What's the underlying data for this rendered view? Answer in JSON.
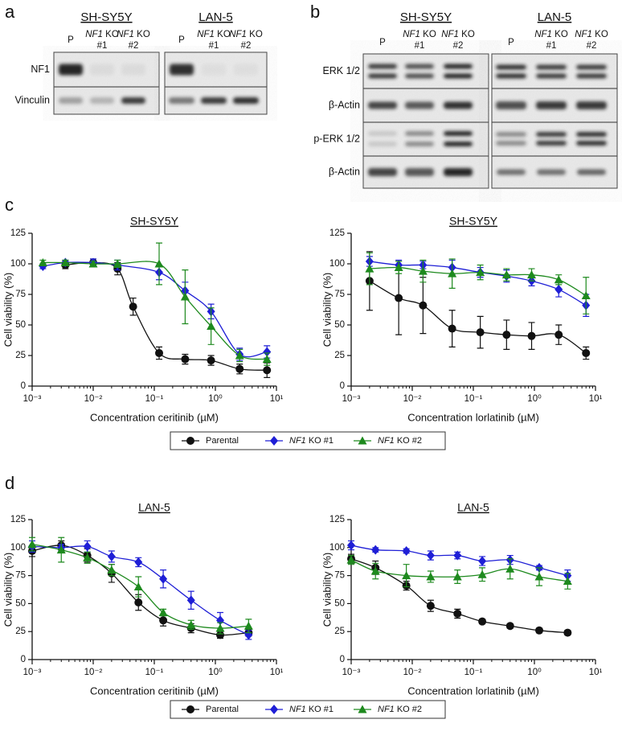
{
  "blots": {
    "a": {
      "letter": "a",
      "groups": [
        {
          "title": "SH-SY5Y",
          "lanes": [
            [
              "P"
            ],
            [
              "NF1 KO",
              "#1"
            ],
            [
              "NF1 KO",
              "#2"
            ]
          ]
        },
        {
          "title": "LAN-5",
          "lanes": [
            [
              "P"
            ],
            [
              "NF1 KO",
              "#1"
            ],
            [
              "NF1 KO",
              "#2"
            ]
          ]
        }
      ],
      "rows": [
        "NF1",
        "Vinculin"
      ]
    },
    "b": {
      "letter": "b",
      "groups": [
        {
          "title": "SH-SY5Y",
          "lanes": [
            [
              "P"
            ],
            [
              "NF1 KO",
              "#1"
            ],
            [
              "NF1 KO",
              "#2"
            ]
          ]
        },
        {
          "title": "LAN-5",
          "lanes": [
            [
              "P"
            ],
            [
              "NF1 KO",
              "#1"
            ],
            [
              "NF1 KO",
              "#2"
            ]
          ]
        }
      ],
      "rows": [
        "ERK 1/2",
        "β-Actin",
        "p-ERK 1/2",
        "β-Actin"
      ]
    }
  },
  "chart_data": [
    {
      "type": "line",
      "letter": "c",
      "series": [
        {
          "name": "Parental",
          "color": "#111111",
          "marker": "circle"
        },
        {
          "name": "NF1 KO #1",
          "color": "#1f1fd6",
          "marker": "diamond"
        },
        {
          "name": "NF1 KO #2",
          "color": "#1e8a1e",
          "marker": "triangle"
        }
      ],
      "plots": [
        {
          "title": "SH-SY5Y",
          "xlabel": "Concentration ceritinib (µM)",
          "ylabel": "Cell viability (%)",
          "xscale": "log",
          "xlim": [
            0.001,
            10
          ],
          "xticks": [
            {
              "value": 0.001,
              "label": "10⁻³"
            },
            {
              "value": 0.01,
              "label": "10⁻²"
            },
            {
              "value": 0.1,
              "label": "10⁻¹"
            },
            {
              "value": 1,
              "label": "10⁰"
            },
            {
              "value": 10,
              "label": "10¹"
            }
          ],
          "ylim": [
            0,
            125
          ],
          "yticks": [
            0,
            25,
            50,
            75,
            100,
            125
          ],
          "series": [
            {
              "x": [
                0.0035,
                0.01,
                0.025,
                0.045,
                0.12,
                0.32,
                0.85,
                2.5,
                7
              ],
              "values": [
                99,
                101,
                96,
                65,
                27,
                22,
                21,
                14,
                13
              ],
              "errors": [
                3,
                3,
                5,
                7,
                5,
                4,
                4,
                4,
                6
              ]
            },
            {
              "x": [
                0.0015,
                0.0035,
                0.01,
                0.025,
                0.12,
                0.32,
                0.85,
                2.5,
                7
              ],
              "values": [
                98,
                101,
                101,
                99,
                93,
                78,
                61,
                26,
                28
              ],
              "errors": [
                2,
                2,
                3,
                4,
                6,
                7,
                6,
                5,
                5
              ]
            },
            {
              "x": [
                0.0015,
                0.0035,
                0.01,
                0.025,
                0.12,
                0.32,
                0.85,
                2.5,
                7
              ],
              "values": [
                101,
                101,
                100,
                100,
                100,
                73,
                49,
                25,
                22
              ],
              "errors": [
                2,
                2,
                2,
                3,
                17,
                22,
                15,
                5,
                5
              ]
            }
          ]
        },
        {
          "title": "SH-SY5Y",
          "xlabel": "Concentration lorlatinib (µM)",
          "ylabel": "Cell viability (%)",
          "xscale": "log",
          "xlim": [
            0.001,
            10
          ],
          "xticks": [
            {
              "value": 0.001,
              "label": "10⁻³"
            },
            {
              "value": 0.01,
              "label": "10⁻²"
            },
            {
              "value": 0.1,
              "label": "10⁻¹"
            },
            {
              "value": 1,
              "label": "10⁰"
            },
            {
              "value": 10,
              "label": "10¹"
            }
          ],
          "ylim": [
            0,
            125
          ],
          "yticks": [
            0,
            25,
            50,
            75,
            100,
            125
          ],
          "series": [
            {
              "x": [
                0.002,
                0.006,
                0.015,
                0.045,
                0.13,
                0.35,
                0.9,
                2.5,
                7
              ],
              "values": [
                86,
                72,
                66,
                47,
                44,
                42,
                41,
                42,
                27
              ],
              "errors": [
                24,
                30,
                23,
                15,
                13,
                12,
                11,
                8,
                5
              ]
            },
            {
              "x": [
                0.002,
                0.006,
                0.015,
                0.045,
                0.13,
                0.35,
                0.9,
                2.5,
                7
              ],
              "values": [
                102,
                99,
                99,
                97,
                93,
                90,
                86,
                79,
                66
              ],
              "errors": [
                4,
                4,
                3,
                6,
                4,
                5,
                4,
                6,
                9
              ]
            },
            {
              "x": [
                0.002,
                0.006,
                0.015,
                0.045,
                0.13,
                0.35,
                0.9,
                2.5,
                7
              ],
              "values": [
                96,
                97,
                94,
                92,
                93,
                91,
                91,
                87,
                74
              ],
              "errors": [
                13,
                5,
                9,
                12,
                6,
                5,
                5,
                4,
                15
              ]
            }
          ]
        }
      ]
    },
    {
      "type": "line",
      "letter": "d",
      "series": [
        {
          "name": "Parental",
          "color": "#111111",
          "marker": "circle"
        },
        {
          "name": "NF1 KO #1",
          "color": "#1f1fd6",
          "marker": "diamond"
        },
        {
          "name": "NF1 KO #2",
          "color": "#1e8a1e",
          "marker": "triangle"
        }
      ],
      "plots": [
        {
          "title": "LAN-5",
          "xlabel": "Concentration ceritinib (µM)",
          "ylabel": "Cell viability (%)",
          "xscale": "log",
          "xlim": [
            0.001,
            10
          ],
          "xticks": [
            {
              "value": 0.001,
              "label": "10⁻³"
            },
            {
              "value": 0.01,
              "label": "10⁻²"
            },
            {
              "value": 0.1,
              "label": "10⁻¹"
            },
            {
              "value": 1,
              "label": "10⁰"
            },
            {
              "value": 10,
              "label": "10¹"
            }
          ],
          "ylim": [
            0,
            125
          ],
          "yticks": [
            0,
            25,
            50,
            75,
            100,
            125
          ],
          "series": [
            {
              "x": [
                0.001,
                0.003,
                0.008,
                0.02,
                0.055,
                0.14,
                0.4,
                1.2,
                3.5
              ],
              "values": [
                97,
                102,
                93,
                77,
                51,
                35,
                28,
                22,
                24
              ],
              "errors": [
                5,
                4,
                6,
                8,
                7,
                5,
                4,
                3,
                3
              ]
            },
            {
              "x": [
                0.001,
                0.003,
                0.008,
                0.02,
                0.055,
                0.14,
                0.4,
                1.2,
                3.5
              ],
              "values": [
                101,
                100,
                101,
                92,
                87,
                72,
                53,
                35,
                22
              ],
              "errors": [
                5,
                3,
                5,
                5,
                4,
                8,
                8,
                7,
                4
              ]
            },
            {
              "x": [
                0.001,
                0.003,
                0.008,
                0.02,
                0.055,
                0.14,
                0.4,
                1.2,
                3.5
              ],
              "values": [
                103,
                98,
                91,
                80,
                65,
                42,
                31,
                28,
                30
              ],
              "errors": [
                6,
                11,
                5,
                5,
                9,
                3,
                4,
                5,
                6
              ]
            }
          ]
        },
        {
          "title": "LAN-5",
          "xlabel": "Concentration lorlatinib (µM)",
          "ylabel": "Cell viability (%)",
          "xscale": "log",
          "xlim": [
            0.001,
            10
          ],
          "xticks": [
            {
              "value": 0.001,
              "label": "10⁻³"
            },
            {
              "value": 0.01,
              "label": "10⁻²"
            },
            {
              "value": 0.1,
              "label": "10⁻¹"
            },
            {
              "value": 1,
              "label": "10⁰"
            },
            {
              "value": 10,
              "label": "10¹"
            }
          ],
          "ylim": [
            0,
            125
          ],
          "yticks": [
            0,
            25,
            50,
            75,
            100,
            125
          ],
          "series": [
            {
              "x": [
                0.001,
                0.0025,
                0.008,
                0.02,
                0.055,
                0.14,
                0.4,
                1.2,
                3.5
              ],
              "values": [
                90,
                82,
                66,
                48,
                41,
                34,
                30,
                26,
                24
              ],
              "errors": [
                4,
                6,
                4,
                5,
                4,
                2,
                2,
                2,
                2
              ]
            },
            {
              "x": [
                0.001,
                0.0025,
                0.008,
                0.02,
                0.055,
                0.14,
                0.4,
                1.2,
                3.5
              ],
              "values": [
                102,
                98,
                97,
                93,
                93,
                88,
                89,
                82,
                75
              ],
              "errors": [
                4,
                2,
                2,
                4,
                3,
                4,
                4,
                2,
                5
              ]
            },
            {
              "x": [
                0.001,
                0.0025,
                0.008,
                0.02,
                0.055,
                0.14,
                0.4,
                1.2,
                3.5
              ],
              "values": [
                89,
                79,
                75,
                74,
                74,
                76,
                81,
                74,
                70
              ],
              "errors": [
                4,
                7,
                10,
                5,
                6,
                6,
                9,
                8,
                7
              ]
            }
          ]
        }
      ]
    }
  ]
}
